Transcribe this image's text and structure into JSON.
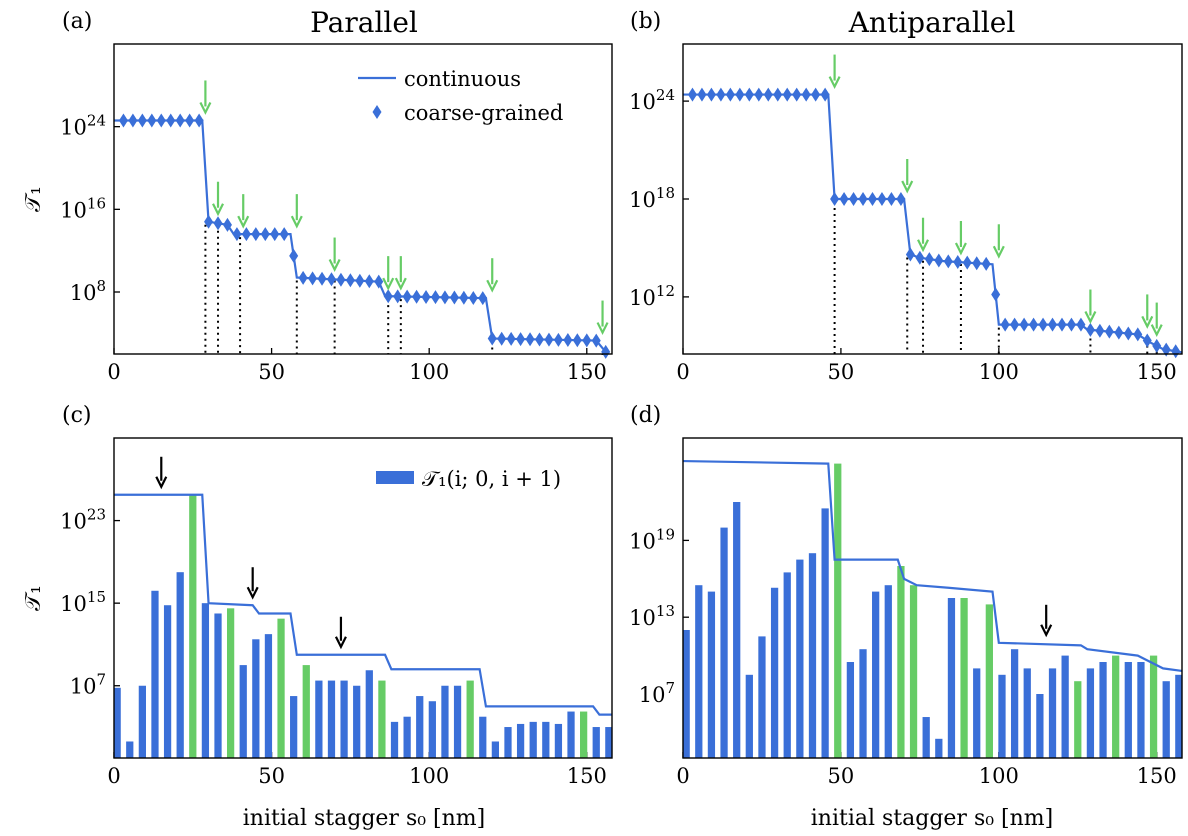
{
  "figure": {
    "col_titles": [
      "Parallel",
      "Antiparallel"
    ],
    "xlabel": "initial stagger s₀ [nm]",
    "ylabel": "𝒯₁"
  },
  "colors": {
    "blue": "#3A6FD8",
    "green": "#66CC66",
    "black": "#000000"
  },
  "chart_data": [
    {
      "panel": "(a)",
      "title": "Parallel",
      "type": "line",
      "xlim": [
        0,
        158
      ],
      "log_ylim": [
        2,
        32
      ],
      "xticks": [
        0,
        50,
        100,
        150
      ],
      "yticks": [
        {
          "exp": 8,
          "label": "10^8"
        },
        {
          "exp": 16,
          "label": "10^16"
        },
        {
          "exp": 24,
          "label": "10^24"
        }
      ],
      "ylabel": "𝒯₁",
      "legend": {
        "position": "top-right",
        "line_label": "continuous",
        "marker_label": "coarse-grained"
      },
      "steps": [
        [
          0,
          24.6
        ],
        [
          28,
          24.6
        ],
        [
          30,
          14.8
        ],
        [
          36,
          14.5
        ],
        [
          38,
          13.6
        ],
        [
          56,
          13.6
        ],
        [
          58,
          9.4
        ],
        [
          84,
          9.0
        ],
        [
          86,
          7.6
        ],
        [
          118,
          7.4
        ],
        [
          120,
          3.5
        ],
        [
          153,
          3.3
        ],
        [
          156,
          2.2
        ]
      ],
      "markers_x": [
        3,
        6,
        9,
        12,
        15,
        18,
        21,
        24,
        27,
        30,
        33,
        36,
        39,
        42,
        45,
        48,
        51,
        54,
        57,
        60,
        63,
        66,
        69,
        72,
        75,
        78,
        81,
        84,
        87,
        90,
        93,
        96,
        99,
        102,
        105,
        108,
        111,
        114,
        117,
        120,
        123,
        126,
        129,
        132,
        135,
        138,
        141,
        144,
        147,
        150,
        153,
        156
      ],
      "dotted_x": [
        29,
        33,
        40,
        58,
        70,
        87,
        91,
        120,
        155
      ],
      "arrows_x": [
        29,
        33,
        41,
        58,
        70,
        87,
        91,
        120,
        155
      ]
    },
    {
      "panel": "(b)",
      "title": "Antiparallel",
      "type": "line",
      "xlim": [
        0,
        158
      ],
      "log_ylim": [
        8.5,
        27.5
      ],
      "xticks": [
        0,
        50,
        100,
        150
      ],
      "yticks": [
        {
          "exp": 12,
          "label": "10^12"
        },
        {
          "exp": 18,
          "label": "10^18"
        },
        {
          "exp": 24,
          "label": "10^24"
        }
      ],
      "ylabel": "",
      "steps": [
        [
          0,
          24.4
        ],
        [
          46,
          24.4
        ],
        [
          48,
          18.0
        ],
        [
          70,
          18.0
        ],
        [
          72,
          14.6
        ],
        [
          75,
          14.4
        ],
        [
          82,
          14.2
        ],
        [
          98,
          14.0
        ],
        [
          100,
          10.3
        ],
        [
          126,
          10.3
        ],
        [
          128,
          10.0
        ],
        [
          144,
          9.7
        ],
        [
          148,
          9.2
        ],
        [
          152,
          8.8
        ],
        [
          158,
          8.6
        ]
      ],
      "markers_x": [
        3,
        6,
        9,
        12,
        15,
        18,
        21,
        24,
        27,
        30,
        33,
        36,
        39,
        42,
        45,
        48,
        51,
        54,
        57,
        60,
        63,
        66,
        69,
        72,
        75,
        78,
        81,
        84,
        87,
        90,
        93,
        96,
        99,
        102,
        105,
        108,
        111,
        114,
        117,
        120,
        123,
        126,
        129,
        132,
        135,
        138,
        141,
        144,
        147,
        150,
        153,
        156
      ],
      "dotted_x": [
        48,
        71,
        76,
        88,
        100,
        129,
        147,
        150
      ],
      "arrows_x": [
        48,
        71,
        76,
        88,
        100,
        129,
        147,
        150
      ]
    },
    {
      "panel": "(c)",
      "title": "",
      "type": "bar",
      "xlim": [
        0,
        158
      ],
      "log_ylim": [
        0,
        31
      ],
      "xticks": [
        0,
        50,
        100,
        150
      ],
      "yticks": [
        {
          "exp": 7,
          "label": "10^7"
        },
        {
          "exp": 15,
          "label": "10^15"
        },
        {
          "exp": 23,
          "label": "10^23"
        }
      ],
      "ylabel": "𝒯₁",
      "legend": {
        "position": "top-right",
        "bar_label": "𝒯₁(i; 0, i + 1)"
      },
      "envelope": [
        [
          0,
          25.5
        ],
        [
          28,
          25.5
        ],
        [
          30,
          15.0
        ],
        [
          44,
          14.8
        ],
        [
          46,
          14.0
        ],
        [
          56,
          14.0
        ],
        [
          58,
          10.0
        ],
        [
          86,
          10.0
        ],
        [
          88,
          8.6
        ],
        [
          116,
          8.6
        ],
        [
          118,
          5.0
        ],
        [
          152,
          5.0
        ],
        [
          154,
          4.2
        ],
        [
          158,
          4.2
        ]
      ],
      "bars": [
        {
          "x": 1,
          "v": 6.8,
          "c": "blue"
        },
        {
          "x": 5,
          "v": 1.6,
          "c": "blue"
        },
        {
          "x": 9,
          "v": 7.0,
          "c": "blue"
        },
        {
          "x": 13,
          "v": 16.2,
          "c": "blue"
        },
        {
          "x": 17,
          "v": 14.8,
          "c": "blue"
        },
        {
          "x": 21,
          "v": 18.0,
          "c": "blue"
        },
        {
          "x": 25,
          "v": 25.5,
          "c": "green"
        },
        {
          "x": 29,
          "v": 15.0,
          "c": "blue"
        },
        {
          "x": 33,
          "v": 14.0,
          "c": "blue"
        },
        {
          "x": 37,
          "v": 14.5,
          "c": "green"
        },
        {
          "x": 41,
          "v": 9.0,
          "c": "blue"
        },
        {
          "x": 45,
          "v": 11.5,
          "c": "blue"
        },
        {
          "x": 49,
          "v": 12.0,
          "c": "blue"
        },
        {
          "x": 53,
          "v": 13.5,
          "c": "green"
        },
        {
          "x": 57,
          "v": 6.0,
          "c": "blue"
        },
        {
          "x": 61,
          "v": 9.0,
          "c": "green"
        },
        {
          "x": 65,
          "v": 7.5,
          "c": "blue"
        },
        {
          "x": 69,
          "v": 7.5,
          "c": "blue"
        },
        {
          "x": 73,
          "v": 7.5,
          "c": "blue"
        },
        {
          "x": 77,
          "v": 7.0,
          "c": "blue"
        },
        {
          "x": 81,
          "v": 8.5,
          "c": "blue"
        },
        {
          "x": 85,
          "v": 7.5,
          "c": "green"
        },
        {
          "x": 89,
          "v": 3.5,
          "c": "blue"
        },
        {
          "x": 93,
          "v": 4.0,
          "c": "blue"
        },
        {
          "x": 97,
          "v": 6.0,
          "c": "blue"
        },
        {
          "x": 101,
          "v": 5.5,
          "c": "blue"
        },
        {
          "x": 105,
          "v": 7.0,
          "c": "blue"
        },
        {
          "x": 109,
          "v": 7.0,
          "c": "blue"
        },
        {
          "x": 113,
          "v": 7.5,
          "c": "green"
        },
        {
          "x": 117,
          "v": 4.0,
          "c": "blue"
        },
        {
          "x": 121,
          "v": 1.6,
          "c": "blue"
        },
        {
          "x": 125,
          "v": 3.0,
          "c": "blue"
        },
        {
          "x": 129,
          "v": 3.3,
          "c": "blue"
        },
        {
          "x": 133,
          "v": 3.5,
          "c": "blue"
        },
        {
          "x": 137,
          "v": 3.5,
          "c": "blue"
        },
        {
          "x": 141,
          "v": 3.3,
          "c": "blue"
        },
        {
          "x": 145,
          "v": 4.5,
          "c": "blue"
        },
        {
          "x": 149,
          "v": 4.5,
          "c": "green"
        },
        {
          "x": 153,
          "v": 3.0,
          "c": "blue"
        },
        {
          "x": 157,
          "v": 3.0,
          "c": "blue"
        }
      ],
      "arrows_x": [
        15,
        44,
        72
      ]
    },
    {
      "panel": "(d)",
      "title": "",
      "type": "bar",
      "xlim": [
        0,
        158
      ],
      "log_ylim": [
        2,
        27
      ],
      "xticks": [
        0,
        50,
        100,
        150
      ],
      "yticks": [
        {
          "exp": 7,
          "label": "10^7"
        },
        {
          "exp": 13,
          "label": "10^13"
        },
        {
          "exp": 19,
          "label": "10^19"
        }
      ],
      "ylabel": "",
      "envelope": [
        [
          0,
          25.2
        ],
        [
          46,
          25.0
        ],
        [
          48,
          17.5
        ],
        [
          68,
          17.5
        ],
        [
          70,
          16.0
        ],
        [
          74,
          15.5
        ],
        [
          84,
          15.3
        ],
        [
          98,
          15.0
        ],
        [
          100,
          11.0
        ],
        [
          126,
          10.8
        ],
        [
          128,
          10.5
        ],
        [
          144,
          10.0
        ],
        [
          148,
          9.5
        ],
        [
          152,
          9.0
        ],
        [
          158,
          8.8
        ]
      ],
      "bars": [
        {
          "x": 1,
          "v": 12.0,
          "c": "blue"
        },
        {
          "x": 5,
          "v": 15.5,
          "c": "blue"
        },
        {
          "x": 9,
          "v": 15.0,
          "c": "blue"
        },
        {
          "x": 13,
          "v": 20.0,
          "c": "blue"
        },
        {
          "x": 17,
          "v": 22.0,
          "c": "blue"
        },
        {
          "x": 21,
          "v": 8.5,
          "c": "blue"
        },
        {
          "x": 25,
          "v": 11.5,
          "c": "blue"
        },
        {
          "x": 29,
          "v": 15.3,
          "c": "blue"
        },
        {
          "x": 33,
          "v": 16.5,
          "c": "blue"
        },
        {
          "x": 37,
          "v": 17.5,
          "c": "blue"
        },
        {
          "x": 41,
          "v": 18.0,
          "c": "blue"
        },
        {
          "x": 45,
          "v": 21.5,
          "c": "blue"
        },
        {
          "x": 49,
          "v": 25.0,
          "c": "green"
        },
        {
          "x": 53,
          "v": 9.5,
          "c": "blue"
        },
        {
          "x": 57,
          "v": 10.5,
          "c": "blue"
        },
        {
          "x": 61,
          "v": 15.0,
          "c": "blue"
        },
        {
          "x": 65,
          "v": 15.5,
          "c": "blue"
        },
        {
          "x": 69,
          "v": 17.0,
          "c": "green"
        },
        {
          "x": 73,
          "v": 15.5,
          "c": "green"
        },
        {
          "x": 77,
          "v": 5.2,
          "c": "blue"
        },
        {
          "x": 81,
          "v": 3.5,
          "c": "blue"
        },
        {
          "x": 85,
          "v": 14.5,
          "c": "blue"
        },
        {
          "x": 89,
          "v": 14.5,
          "c": "green"
        },
        {
          "x": 93,
          "v": 9.0,
          "c": "blue"
        },
        {
          "x": 97,
          "v": 14.0,
          "c": "green"
        },
        {
          "x": 101,
          "v": 8.5,
          "c": "blue"
        },
        {
          "x": 105,
          "v": 10.5,
          "c": "blue"
        },
        {
          "x": 109,
          "v": 9.0,
          "c": "blue"
        },
        {
          "x": 113,
          "v": 7.0,
          "c": "blue"
        },
        {
          "x": 117,
          "v": 9.0,
          "c": "blue"
        },
        {
          "x": 121,
          "v": 10.0,
          "c": "blue"
        },
        {
          "x": 125,
          "v": 8.0,
          "c": "green"
        },
        {
          "x": 129,
          "v": 9.0,
          "c": "blue"
        },
        {
          "x": 133,
          "v": 9.5,
          "c": "blue"
        },
        {
          "x": 137,
          "v": 10.0,
          "c": "green"
        },
        {
          "x": 141,
          "v": 9.5,
          "c": "blue"
        },
        {
          "x": 145,
          "v": 9.5,
          "c": "blue"
        },
        {
          "x": 149,
          "v": 10.0,
          "c": "green"
        },
        {
          "x": 153,
          "v": 8.0,
          "c": "blue"
        },
        {
          "x": 157,
          "v": 8.5,
          "c": "blue"
        }
      ],
      "arrows_x": [
        115
      ]
    }
  ]
}
